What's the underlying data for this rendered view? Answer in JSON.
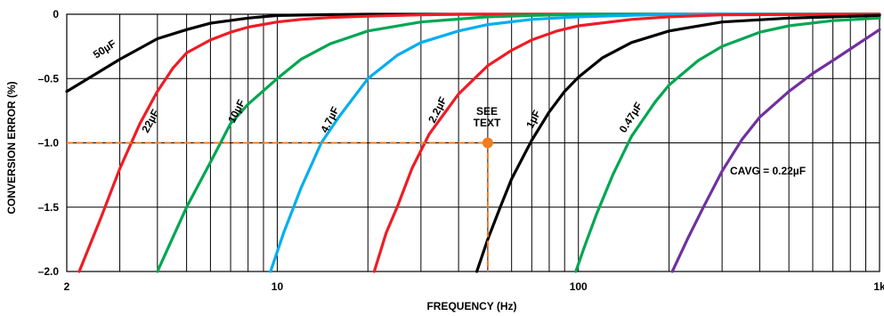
{
  "chart_data": {
    "type": "line",
    "xscale": "log",
    "xlim": [
      2,
      1000
    ],
    "ylim": [
      -2.0,
      0
    ],
    "xlabel": "FREQUENCY (Hz)",
    "ylabel": "CONVERSION ERROR (%)",
    "x_tick_labels": [
      {
        "value": 2,
        "label": "2"
      },
      {
        "value": 10,
        "label": "10"
      },
      {
        "value": 100,
        "label": "100"
      },
      {
        "value": 1000,
        "label": "1k"
      }
    ],
    "y_tick_labels": [
      {
        "value": 0,
        "label": "0"
      },
      {
        "value": -0.5,
        "label": "–0.5"
      },
      {
        "value": -1.0,
        "label": "–1.0"
      },
      {
        "value": -1.5,
        "label": "–1.5"
      },
      {
        "value": -2.0,
        "label": "–2.0"
      }
    ],
    "grid": true,
    "series": [
      {
        "name": "50µF",
        "color": "#000000",
        "x": [
          2,
          3,
          4,
          5,
          6,
          8,
          10,
          15,
          20,
          1000
        ],
        "y": [
          -0.6,
          -0.35,
          -0.19,
          -0.12,
          -0.07,
          -0.03,
          -0.01,
          -0.003,
          0,
          0
        ]
      },
      {
        "name": "22µF",
        "color": "#ee1c25",
        "x": [
          2.2,
          2.6,
          3,
          3.5,
          4,
          4.5,
          5,
          6,
          7,
          8,
          10,
          12,
          15,
          20,
          30,
          40,
          50,
          1000
        ],
        "y": [
          -2.0,
          -1.58,
          -1.2,
          -0.85,
          -0.6,
          -0.42,
          -0.3,
          -0.2,
          -0.14,
          -0.1,
          -0.06,
          -0.04,
          -0.025,
          -0.015,
          -0.005,
          0,
          0,
          0
        ]
      },
      {
        "name": "10µF",
        "color": "#00a651",
        "x": [
          4,
          5,
          6,
          7,
          8,
          10,
          12,
          15,
          20,
          30,
          50,
          70,
          100,
          1000
        ],
        "y": [
          -2.0,
          -1.5,
          -1.15,
          -0.85,
          -0.7,
          -0.5,
          -0.35,
          -0.23,
          -0.13,
          -0.06,
          -0.02,
          -0.01,
          0,
          0
        ]
      },
      {
        "name": "4.7µF",
        "color": "#00aeef",
        "x": [
          9.5,
          10.5,
          12,
          14,
          16,
          20,
          25,
          30,
          40,
          50,
          70,
          100,
          200,
          1000
        ],
        "y": [
          -2.0,
          -1.7,
          -1.35,
          -1.0,
          -0.8,
          -0.5,
          -0.32,
          -0.22,
          -0.13,
          -0.08,
          -0.04,
          -0.02,
          0,
          0
        ]
      },
      {
        "name": "2.2µF",
        "color": "#ee1c25",
        "x": [
          21,
          23,
          25,
          28,
          32,
          40,
          50,
          60,
          70,
          85,
          100,
          150,
          200,
          300,
          1000
        ],
        "y": [
          -2.0,
          -1.7,
          -1.5,
          -1.2,
          -0.93,
          -0.62,
          -0.4,
          -0.28,
          -0.2,
          -0.13,
          -0.09,
          -0.04,
          -0.02,
          -0.005,
          0
        ]
      },
      {
        "name": "1µF",
        "color": "#000000",
        "x": [
          46,
          50,
          55,
          60,
          70,
          80,
          90,
          100,
          120,
          150,
          200,
          300,
          500,
          1000
        ],
        "y": [
          -2.0,
          -1.75,
          -1.5,
          -1.28,
          -0.98,
          -0.76,
          -0.6,
          -0.49,
          -0.34,
          -0.22,
          -0.13,
          -0.06,
          -0.03,
          -0.01
        ]
      },
      {
        "name": "0.47µF",
        "color": "#00a651",
        "x": [
          98,
          105,
          115,
          130,
          150,
          180,
          200,
          250,
          300,
          400,
          500,
          700,
          1000
        ],
        "y": [
          -2.0,
          -1.8,
          -1.55,
          -1.25,
          -0.95,
          -0.68,
          -0.55,
          -0.36,
          -0.25,
          -0.14,
          -0.09,
          -0.05,
          -0.03
        ]
      },
      {
        "name": "CAVG = 0.22µF",
        "color": "#7030a0",
        "x": [
          205,
          230,
          260,
          300,
          350,
          400,
          500,
          600,
          700,
          800,
          1000
        ],
        "y": [
          -2.0,
          -1.75,
          -1.5,
          -1.22,
          -0.97,
          -0.8,
          -0.6,
          -0.46,
          -0.36,
          -0.27,
          -0.12
        ]
      }
    ],
    "annotations": [
      {
        "text": "SEE TEXT",
        "x": 50,
        "y": -1.0,
        "color": "#f47b20"
      }
    ]
  },
  "label_texts": {
    "c50": "50µF",
    "c22": "22µF",
    "c10": "10µF",
    "c47": "4.7µF",
    "c22b": "2.2µF",
    "c1": "1µF",
    "c047": "0.47µF",
    "cavg": "CAVG = 0.22µF",
    "see": "SEE",
    "text": "TEXT"
  }
}
